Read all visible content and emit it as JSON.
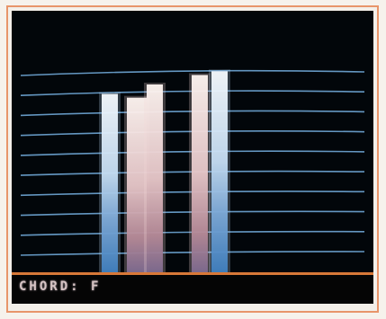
{
  "display": {
    "chord_label": "CHORD:",
    "chord_value": "F"
  },
  "colors": {
    "staff_line": "#6fa7d6",
    "bar_top": "#f7fbff",
    "bar_mid": "#9cc2e6",
    "bar_bottom": "#3f7fbf",
    "bar_warm_top": "#fff1ee",
    "bar_warm_bottom": "#b07a86",
    "status_rule": "#d87838",
    "status_text": "#d6c4c4"
  },
  "staff": {
    "line_count": 10
  },
  "bars": [
    {
      "name": "note-bar-1",
      "level": 0.95,
      "tone": "cool"
    },
    {
      "name": "note-bar-2",
      "level": 0.93,
      "tone": "warm"
    },
    {
      "name": "note-bar-3",
      "level": 1.0,
      "tone": "warm"
    },
    {
      "name": "note-bar-4",
      "level": 1.05,
      "tone": "warm"
    },
    {
      "name": "note-bar-5",
      "level": 1.07,
      "tone": "cool"
    }
  ]
}
